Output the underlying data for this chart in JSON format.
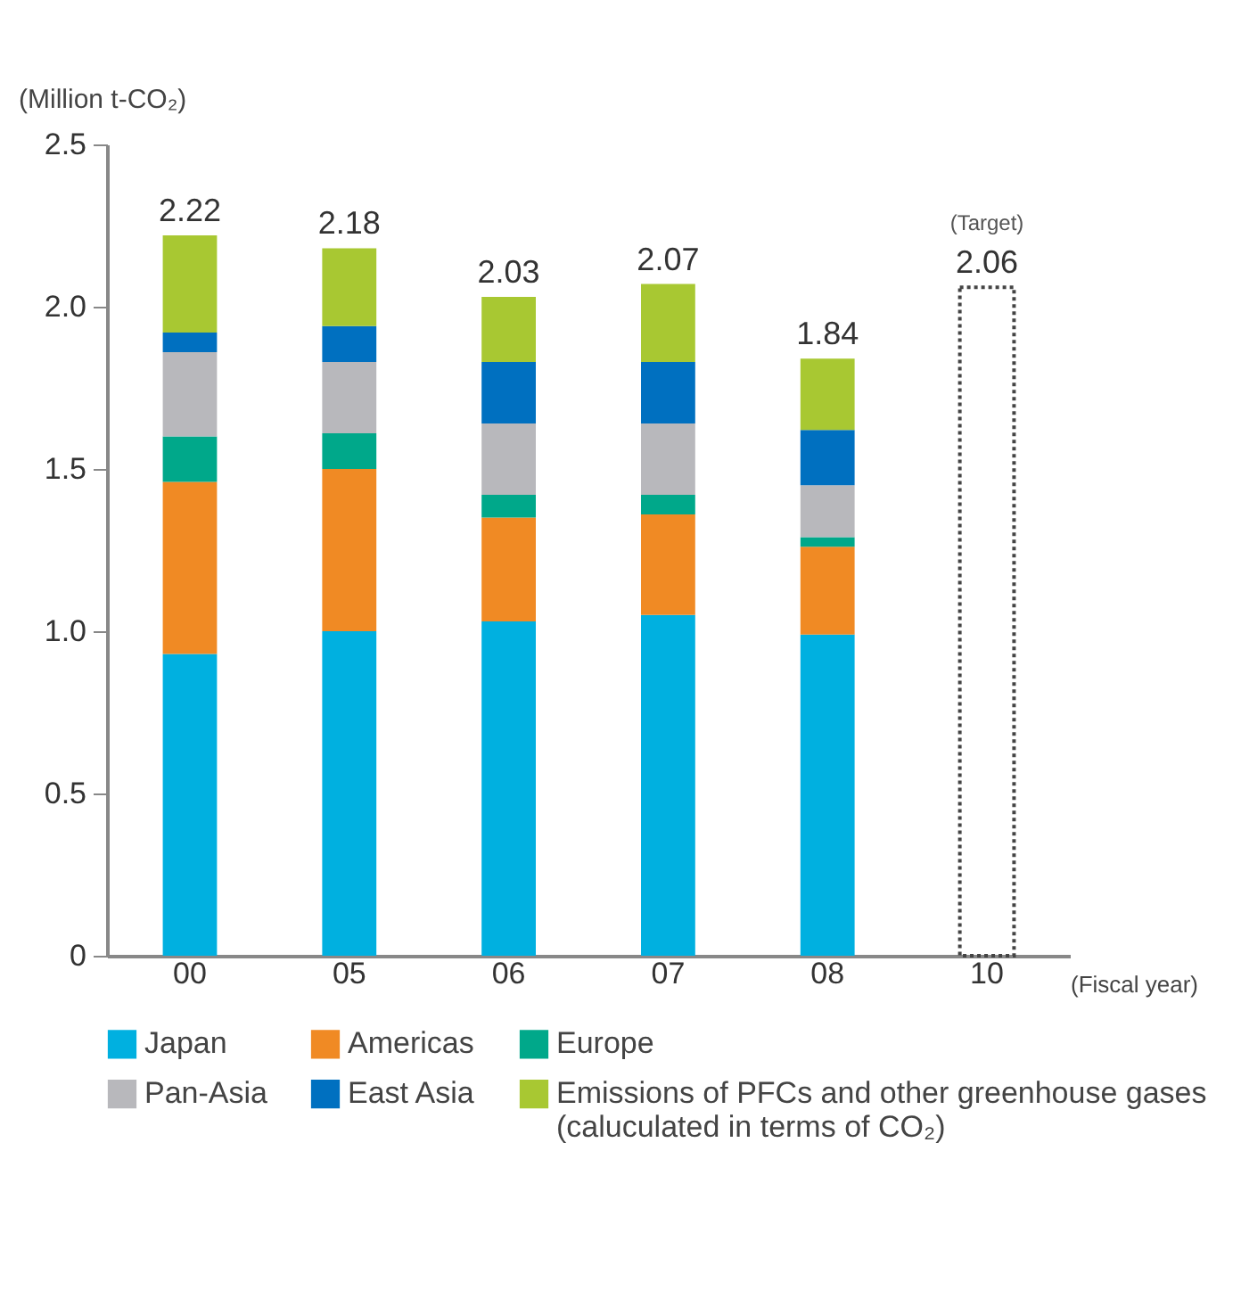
{
  "chart_data": {
    "type": "bar",
    "stacked": true,
    "ylabel": "(Million t-CO₂)",
    "xlabel": "(Fiscal year)",
    "categories": [
      "00",
      "05",
      "06",
      "07",
      "08",
      "10"
    ],
    "series": [
      {
        "name": "Japan",
        "color": "#00b0e0",
        "values": [
          0.93,
          1.0,
          1.03,
          1.05,
          0.99,
          null
        ]
      },
      {
        "name": "Americas",
        "color": "#f08a24",
        "values": [
          0.53,
          0.5,
          0.32,
          0.31,
          0.27,
          null
        ]
      },
      {
        "name": "Europe",
        "color": "#00a88a",
        "values": [
          0.14,
          0.11,
          0.07,
          0.06,
          0.03,
          null
        ]
      },
      {
        "name": "Pan-Asia",
        "color": "#b8b8bc",
        "values": [
          0.26,
          0.22,
          0.22,
          0.22,
          0.16,
          null
        ]
      },
      {
        "name": "East Asia",
        "color": "#0070c0",
        "values": [
          0.06,
          0.11,
          0.19,
          0.19,
          0.17,
          null
        ]
      },
      {
        "name": "Emissions of PFCs and other greenhouse gases (caluculated in terms of CO₂)",
        "color": "#a8c832",
        "values": [
          0.3,
          0.24,
          0.2,
          0.24,
          0.22,
          null
        ]
      },
      {
        "color": "#444444",
        "line_style": "dotted",
        "values": [
          null,
          null,
          null,
          null,
          null,
          2.06
        ]
      }
    ],
    "totals": [
      "2.22",
      "2.18",
      "2.03",
      "2.07",
      "1.84",
      "2.06"
    ],
    "annotations": [
      {
        "text": "(Target)",
        "x": "10",
        "y": 2.06
      }
    ],
    "ylim": [
      0,
      2.5
    ],
    "yticks": [
      0,
      0.5,
      {
        "value": 1,
        "label": "1.0"
      },
      1.5,
      {
        "value": 2,
        "label": "2.0"
      },
      2.5
    ],
    "grid": false,
    "legend": "bottom"
  }
}
